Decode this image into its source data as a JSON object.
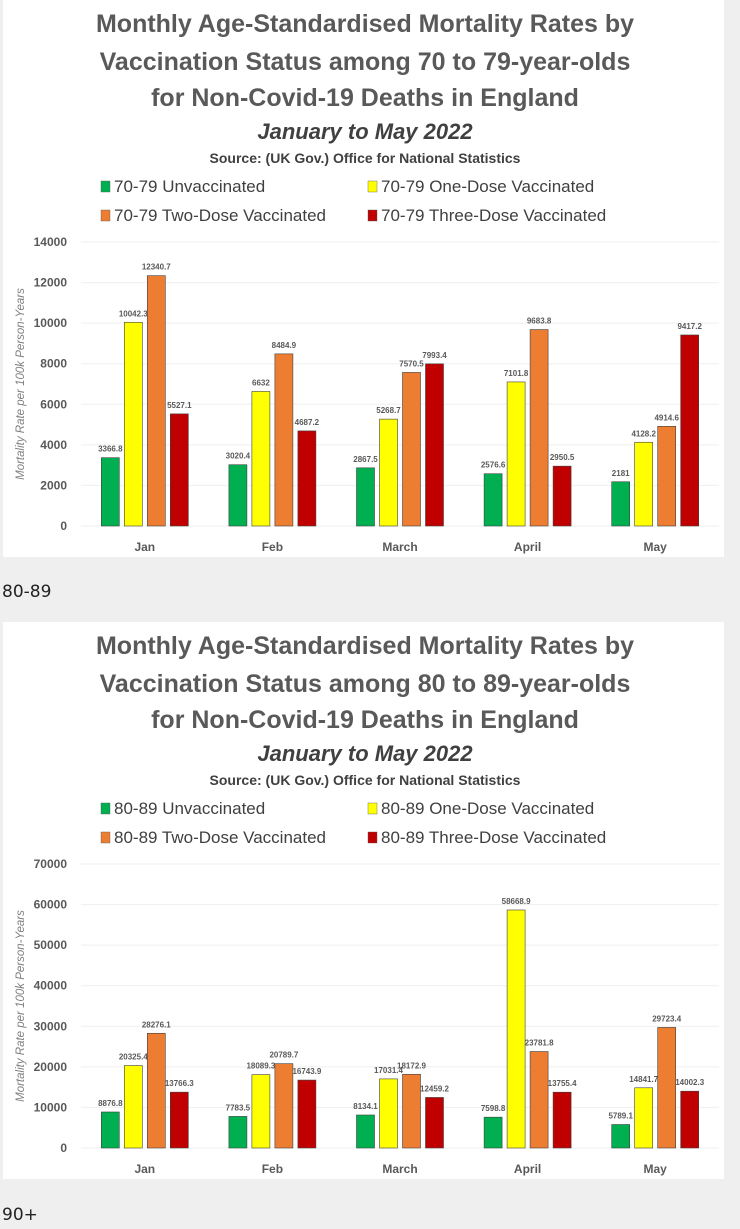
{
  "section_labels": [
    "80-89",
    "90+"
  ],
  "colors": {
    "unvaccinated": "#00b050",
    "one_dose": "#ffff00",
    "two_dose": "#ed7d31",
    "three_dose": "#c00000"
  },
  "chart_data": [
    {
      "type": "bar",
      "title_lines": [
        "Monthly Age-Standardised Mortality Rates by",
        "Vaccination Status among 70 to 79-year-olds",
        "for Non-Covid-19 Deaths in England"
      ],
      "subtitle": "January to May 2022",
      "source": "Source: (UK Gov.) Office for National Statistics",
      "xlabel": "",
      "ylabel": "Mortality Rate per 100k Person-Years",
      "ylim": [
        0,
        14000
      ],
      "yticks": [
        0,
        2000,
        4000,
        6000,
        8000,
        10000,
        12000,
        14000
      ],
      "grid": true,
      "legend_position": "top",
      "categories": [
        "Jan",
        "Feb",
        "March",
        "April",
        "May"
      ],
      "series": [
        {
          "name": "70-79 Unvaccinated",
          "color_key": "unvaccinated",
          "values": [
            3366.8,
            3020.4,
            2867.5,
            2576.6,
            2181
          ]
        },
        {
          "name": "70-79 One-Dose Vaccinated",
          "color_key": "one_dose",
          "values": [
            10042.3,
            6632,
            5268.7,
            7101.8,
            4128.2
          ]
        },
        {
          "name": "70-79 Two-Dose Vaccinated",
          "color_key": "two_dose",
          "values": [
            12340.7,
            8484.9,
            7570.5,
            9683.8,
            4914.6
          ]
        },
        {
          "name": "70-79 Three-Dose Vaccinated",
          "color_key": "three_dose",
          "values": [
            5527.1,
            4687.2,
            7993.4,
            2950.5,
            9417.2
          ]
        }
      ]
    },
    {
      "type": "bar",
      "title_lines": [
        "Monthly Age-Standardised Mortality Rates by",
        "Vaccination Status among 80 to 89-year-olds",
        "for Non-Covid-19 Deaths in England"
      ],
      "subtitle": "January to May 2022",
      "source": "Source: (UK Gov.) Office for National Statistics",
      "xlabel": "",
      "ylabel": "Mortality Rate per 100k Person-Years",
      "ylim": [
        0,
        70000
      ],
      "yticks": [
        0,
        10000,
        20000,
        30000,
        40000,
        50000,
        60000,
        70000
      ],
      "grid": true,
      "legend_position": "top",
      "categories": [
        "Jan",
        "Feb",
        "March",
        "April",
        "May"
      ],
      "series": [
        {
          "name": "80-89 Unvaccinated",
          "color_key": "unvaccinated",
          "values": [
            8876.8,
            7783.5,
            8134.1,
            7598.8,
            5789.1
          ]
        },
        {
          "name": "80-89 One-Dose Vaccinated",
          "color_key": "one_dose",
          "values": [
            20325.4,
            18089.3,
            17031.4,
            58668.9,
            14841.7
          ]
        },
        {
          "name": "80-89 Two-Dose Vaccinated",
          "color_key": "two_dose",
          "values": [
            28276.1,
            20789.7,
            18172.9,
            23781.8,
            29723.4
          ]
        },
        {
          "name": "80-89 Three-Dose Vaccinated",
          "color_key": "three_dose",
          "values": [
            13766.3,
            16743.9,
            12459.2,
            13755.4,
            14002.3
          ]
        }
      ]
    }
  ]
}
